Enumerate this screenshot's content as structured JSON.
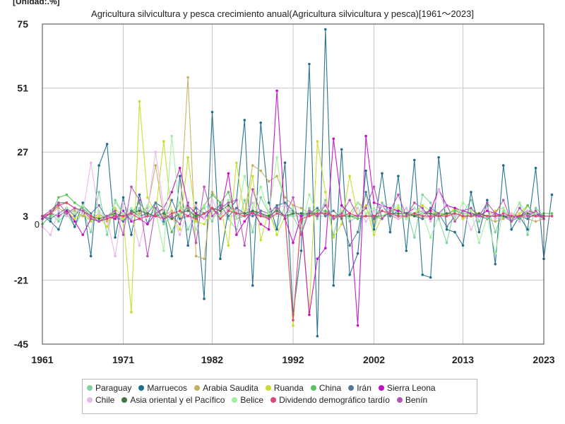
{
  "chart_data": {
    "type": "line",
    "title": "Agricultura silvicultura y pesca crecimiento anual(Agricultura silvicultura y pesca)[1961〜2023]",
    "unit_label": "[Unidad:.%]",
    "xlabel": "",
    "ylabel": "",
    "xlim": [
      1961,
      2023
    ],
    "ylim": [
      -45,
      75
    ],
    "x_ticks": [
      1961,
      1971,
      1982,
      1992,
      2002,
      2013,
      2023
    ],
    "y_ticks": [
      -45,
      -21,
      3,
      27,
      51,
      75
    ],
    "y_extra_labels": [
      0
    ],
    "grid": true,
    "legend_position": "bottom",
    "series": [
      {
        "name": "Paraguay",
        "color": "#7fd3a0",
        "start": 1962,
        "values": [
          4,
          1,
          4,
          -1,
          5,
          -3,
          12,
          -4,
          9,
          4,
          2,
          6,
          3,
          5,
          0,
          3,
          8,
          -2,
          4,
          6,
          1,
          8,
          2,
          -2,
          9,
          -3,
          10,
          4,
          -2,
          7,
          3,
          -3,
          6,
          2,
          9,
          -4,
          7,
          1,
          3,
          11,
          -2,
          8,
          5,
          3,
          6,
          -5,
          11,
          8,
          2,
          -7,
          6,
          4,
          9,
          1,
          7,
          -3,
          5,
          2,
          8,
          -4,
          6,
          3
        ]
      },
      {
        "name": "Marruecos",
        "color": "#1f6e8c",
        "start": 1961,
        "values": [
          3,
          1,
          -2,
          6,
          -1,
          8,
          -12,
          22,
          30,
          -5,
          10,
          -4,
          11,
          0,
          8,
          6,
          -12,
          18,
          -8,
          8,
          -28,
          42,
          -13,
          5,
          9,
          39,
          -23,
          38,
          8,
          -2,
          23,
          -34,
          -10,
          60,
          -42,
          73,
          -23,
          28,
          -19,
          -11,
          20,
          -2,
          19,
          -3,
          18,
          -10,
          24,
          -19,
          -20,
          25,
          -2,
          -3,
          -8,
          12,
          -3,
          9,
          -15,
          22,
          -2,
          3,
          -2,
          21,
          -13,
          11
        ]
      },
      {
        "name": "Arabia Saudita",
        "color": "#c4b062",
        "start": 1962,
        "values": [
          4,
          6,
          4,
          5,
          3,
          2,
          4,
          1,
          3,
          2,
          5,
          4,
          6,
          22,
          3,
          5,
          2,
          55,
          -12,
          -13,
          12,
          8,
          5,
          6,
          4,
          22,
          20,
          16,
          18,
          10,
          7,
          6,
          4,
          3,
          5,
          2,
          3,
          4,
          8,
          6,
          1,
          5,
          3,
          2,
          3,
          4,
          2,
          3,
          4,
          3,
          6,
          2,
          4,
          3,
          2,
          1,
          2,
          4,
          3,
          2,
          1,
          2
        ]
      },
      {
        "name": "Ruanda",
        "color": "#c8dd2a",
        "start": 1961,
        "values": [
          2,
          4,
          3,
          5,
          2,
          4,
          1,
          3,
          -1,
          6,
          2,
          -33,
          46,
          10,
          4,
          31,
          3,
          -2,
          25,
          1,
          0,
          5,
          7,
          -8,
          23,
          3,
          18,
          -6,
          5,
          -4,
          3,
          -38,
          4,
          -33,
          31,
          12,
          -5,
          0,
          18,
          3,
          7,
          -4,
          3,
          5,
          6,
          2,
          4,
          7,
          5,
          4,
          3,
          6,
          2,
          5,
          4,
          3,
          5,
          6,
          2,
          4,
          7,
          3,
          2
        ]
      },
      {
        "name": "China",
        "color": "#5cc05c",
        "start": 1961,
        "values": [
          0,
          3,
          10,
          11,
          8,
          6,
          3,
          1,
          2,
          3,
          1,
          4,
          8,
          4,
          3,
          6,
          -3,
          4,
          6,
          2,
          7,
          11,
          8,
          12,
          2,
          3,
          5,
          3,
          3,
          7,
          2,
          4,
          4,
          3,
          5,
          5,
          3,
          4,
          3,
          2,
          3,
          3,
          2,
          5,
          5,
          4,
          4,
          5,
          4,
          4,
          4,
          5,
          4,
          4,
          4,
          3,
          3,
          3,
          3,
          2,
          7,
          3,
          4,
          4
        ]
      },
      {
        "name": "Irán",
        "color": "#537a9c",
        "start": 1961,
        "values": [
          3,
          2,
          4,
          6,
          3,
          7,
          4,
          7,
          2,
          3,
          1,
          5,
          3,
          4,
          8,
          1,
          9,
          2,
          3,
          6,
          4,
          5,
          7,
          3,
          6,
          4,
          3,
          5,
          4,
          7,
          8,
          5,
          3,
          4,
          6,
          3,
          5,
          2,
          -8,
          -3,
          12,
          2,
          7,
          3,
          5,
          4,
          3,
          2,
          6,
          4,
          -1,
          3,
          5,
          4,
          3,
          2,
          4,
          3,
          1,
          3,
          2,
          4,
          3
        ]
      },
      {
        "name": "Sierra Leona",
        "color": "#c70fc7",
        "start": 1961,
        "values": [
          2,
          4,
          3,
          5,
          1,
          -4,
          2,
          1,
          3,
          2,
          5,
          1,
          2,
          0,
          4,
          6,
          12,
          21,
          7,
          4,
          2,
          6,
          3,
          19,
          -4,
          1,
          5,
          0,
          -2,
          50,
          2,
          -7,
          3,
          -34,
          -13,
          -9,
          32,
          7,
          4,
          -38,
          33,
          8,
          7,
          6,
          5,
          4,
          6,
          4,
          5,
          13,
          7,
          6,
          5,
          4,
          3,
          5,
          4,
          3,
          2,
          3,
          5,
          4,
          2
        ]
      },
      {
        "name": "Chile",
        "color": "#e9b7ea",
        "start": 1961,
        "values": [
          -1,
          -4,
          5,
          3,
          6,
          4,
          23,
          4,
          2,
          -12,
          8,
          3,
          -8,
          5,
          27,
          6,
          3,
          -4,
          5,
          7,
          2,
          9,
          3,
          6,
          5,
          4,
          8,
          3,
          5,
          6,
          7,
          4,
          2,
          5,
          3,
          8,
          2,
          4,
          3,
          6,
          1,
          5,
          7,
          4,
          2,
          6,
          3,
          5,
          1,
          13,
          4,
          3,
          5,
          -2,
          4,
          6,
          2,
          3,
          4,
          1,
          5,
          3,
          2
        ]
      },
      {
        "name": "Asia oriental y el Pacífico",
        "color": "#3f7a3f",
        "start": 1961,
        "values": [
          3,
          4,
          8,
          8,
          6,
          5,
          3,
          2,
          3,
          4,
          3,
          4,
          5,
          4,
          3,
          4,
          2,
          4,
          5,
          3,
          4,
          6,
          5,
          7,
          4,
          4,
          5,
          4,
          3,
          5,
          3,
          4,
          4,
          4,
          4,
          4,
          3,
          3,
          3,
          3,
          3,
          3,
          3,
          4,
          4,
          4,
          3,
          4,
          4,
          3,
          4,
          4,
          3,
          3,
          4,
          3,
          3,
          3,
          3,
          3,
          4,
          3,
          3,
          3
        ]
      },
      {
        "name": "Belice",
        "color": "#a0f0a0",
        "start": 1961,
        "values": [
          3,
          5,
          2,
          6,
          4,
          7,
          3,
          5,
          2,
          8,
          4,
          6,
          3,
          7,
          5,
          -10,
          33,
          4,
          8,
          -2,
          7,
          5,
          3,
          9,
          2,
          18,
          6,
          14,
          4,
          25,
          3,
          6,
          -2,
          11,
          4,
          7,
          3,
          5,
          2,
          8,
          4,
          6,
          3,
          5,
          7,
          2,
          6,
          4,
          -5,
          3,
          7,
          2,
          8,
          5,
          -7,
          3,
          -11,
          6,
          2,
          8,
          3,
          4
        ]
      },
      {
        "name": "Dividendo demográfico tardío",
        "color": "#e0457a",
        "start": 1961,
        "values": [
          3,
          4,
          7,
          8,
          6,
          5,
          3,
          1,
          2,
          3,
          3,
          4,
          2,
          3,
          3,
          2,
          4,
          5,
          3,
          2,
          4,
          6,
          2,
          5,
          4,
          3,
          4,
          3,
          2,
          4,
          3,
          -36,
          2,
          3,
          4,
          4,
          3,
          3,
          4,
          3,
          3,
          3,
          5,
          4,
          3,
          3,
          4,
          3,
          3,
          3,
          3,
          4,
          3,
          3,
          3,
          3,
          3,
          4,
          3,
          3,
          3,
          3,
          3,
          3
        ]
      },
      {
        "name": "Benín",
        "color": "#b555b5",
        "start": 1961,
        "values": [
          3,
          5,
          8,
          4,
          6,
          5,
          2,
          1,
          3,
          5,
          -4,
          14,
          9,
          -12,
          6,
          2,
          3,
          0,
          8,
          -7,
          14,
          3,
          6,
          8,
          9,
          -8,
          13,
          4,
          2,
          6,
          3,
          10,
          -4,
          5,
          3,
          7,
          2,
          4,
          9,
          3,
          6,
          14,
          2,
          5,
          11,
          3,
          8,
          6,
          2,
          4,
          7,
          1,
          5,
          6,
          3,
          8,
          4,
          9,
          1,
          6,
          3,
          5,
          2
        ]
      }
    ]
  }
}
